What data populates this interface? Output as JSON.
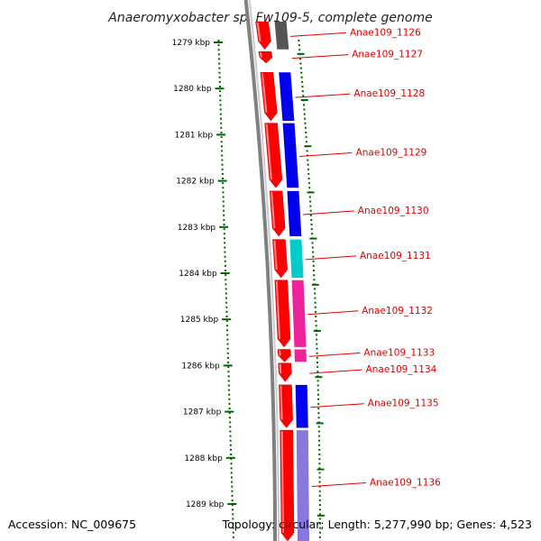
{
  "title": "Anaeromyxobacter sp. Fw109-5, complete genome",
  "accession": "Accession: NC_009675",
  "topology": "Topology: circular; Length: 5,277,990 bp; Genes: 4,523",
  "colors": {
    "forward_gene": "#ff0000",
    "tick": "#006600",
    "label": "#dd0000",
    "backbone": "#808080",
    "blue": "#0000ee",
    "cyan": "#00cccc",
    "magenta": "#ee2299",
    "lavender": "#8877dd",
    "dark_gray": "#555555"
  },
  "ticks": [
    {
      "label": "1279 kbp",
      "pos": 1279
    },
    {
      "label": "1280 kbp",
      "pos": 1280
    },
    {
      "label": "1281 kbp",
      "pos": 1281
    },
    {
      "label": "1282 kbp",
      "pos": 1282
    },
    {
      "label": "1283 kbp",
      "pos": 1283
    },
    {
      "label": "1284 kbp",
      "pos": 1284
    },
    {
      "label": "1285 kbp",
      "pos": 1285
    },
    {
      "label": "1286 kbp",
      "pos": 1286
    },
    {
      "label": "1287 kbp",
      "pos": 1287
    },
    {
      "label": "1288 kbp",
      "pos": 1288
    },
    {
      "label": "1289 kbp",
      "pos": 1289
    }
  ],
  "genes": [
    {
      "label": "Anae109_1126",
      "start": 1278.55,
      "end": 1279.15,
      "cog_color": "#555555"
    },
    {
      "label": "Anae109_1127",
      "start": 1279.2,
      "end": 1279.45,
      "cog_color": null
    },
    {
      "label": "Anae109_1128",
      "start": 1279.65,
      "end": 1280.7,
      "cog_color": "#0000ee"
    },
    {
      "label": "Anae109_1129",
      "start": 1280.75,
      "end": 1282.15,
      "cog_color": "#0000ee"
    },
    {
      "label": "Anae109_1130",
      "start": 1282.22,
      "end": 1283.2,
      "cog_color": "#0000ee"
    },
    {
      "label": "Anae109_1131",
      "start": 1283.27,
      "end": 1284.1,
      "cog_color": "#00cccc"
    },
    {
      "label": "Anae109_1132",
      "start": 1284.15,
      "end": 1285.6,
      "cog_color": "#ee2299"
    },
    {
      "label": "Anae109_1133",
      "start": 1285.65,
      "end": 1285.92,
      "cog_color": "#ee2299"
    },
    {
      "label": "Anae109_1134",
      "start": 1285.95,
      "end": 1286.35,
      "cog_color": null
    },
    {
      "label": "Anae109_1135",
      "start": 1286.42,
      "end": 1287.35,
      "cog_color": "#0000ee"
    },
    {
      "label": "Anae109_1136",
      "start": 1287.4,
      "end": 1289.8,
      "cog_color": "#8877dd"
    }
  ]
}
